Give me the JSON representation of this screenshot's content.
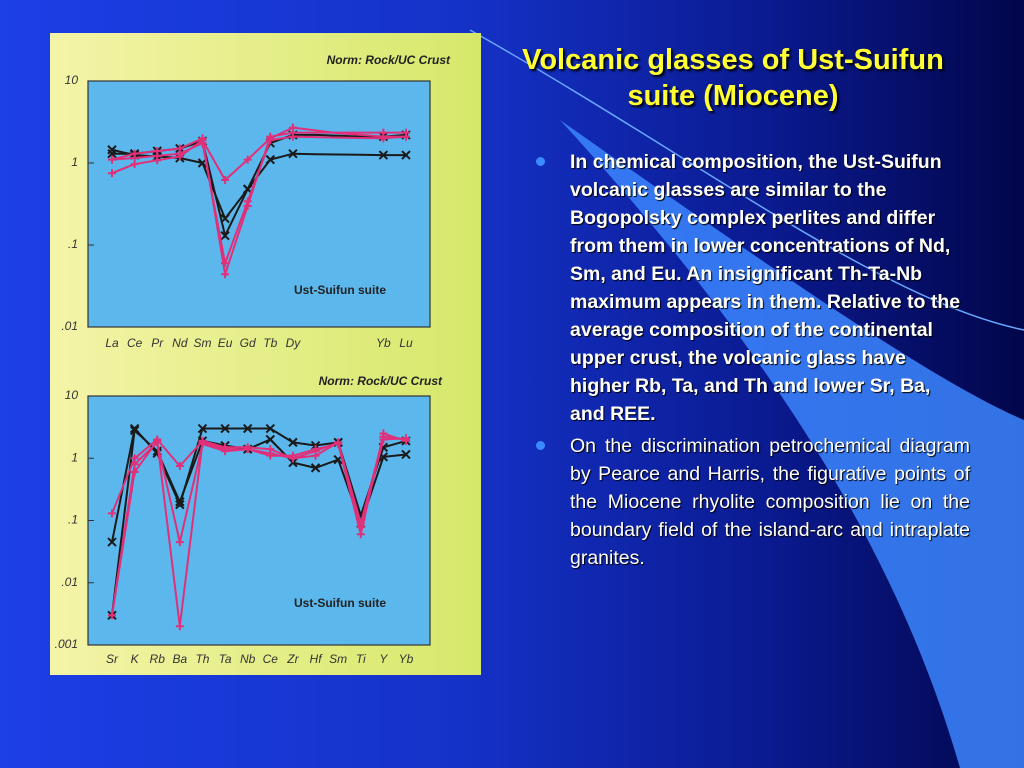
{
  "title": "Volcanic glasses of Ust-Suifun suite (Miocene)",
  "bullets": [
    "In chemical composition, the Ust-Suifun volcanic glasses are similar to the Bogopolsky complex perlites and differ from them in lower concentrations of Nd, Sm, and Eu. An insignificant Th-Ta-Nb maximum appears in them. Relative to the average composition of the continental upper crust, the volcanic glass have higher Rb, Ta, and Th and lower Sr, Ba, and REE.",
    "On the discrimination petrochemical diagram by Pearce and Harris, the figurative points of the Miocene rhyolite composition lie on the boundary field of the island-arc and intraplate granites."
  ],
  "chart_data": [
    {
      "type": "line",
      "subtitle": "Norm: Rock/UC Crust",
      "annotation": "Ust-Suifun suite",
      "log_scale": true,
      "categories": [
        "La",
        "Ce",
        "Pr",
        "Nd",
        "Sm",
        "Eu",
        "Gd",
        "Tb",
        "Dy",
        null,
        null,
        null,
        "Yb",
        "Lu"
      ],
      "ylim": [
        0.01,
        10
      ],
      "yticks": [
        10,
        1,
        {
          "value": 0.1,
          "label": ".1"
        },
        {
          "value": 0.01,
          "label": ".01"
        }
      ],
      "series": [
        {
          "color": "#1a1a1a",
          "marker": "x",
          "values": [
            1.45,
            1.25,
            1.2,
            1.15,
            1.0,
            0.21,
            0.48,
            1.1,
            1.3,
            1.28,
            1.27,
            1.26,
            1.25,
            1.25
          ]
        },
        {
          "color": "#1a1a1a",
          "marker": "x",
          "values": [
            1.3,
            1.3,
            1.4,
            1.5,
            1.85,
            0.13,
            0.48,
            1.75,
            2.2,
            2.2,
            2.15,
            2.1,
            2.1,
            2.2
          ]
        },
        {
          "color": "#e0307a",
          "marker": "+",
          "values": [
            0.75,
            0.97,
            1.08,
            1.2,
            1.9,
            0.62,
            1.1,
            2.0,
            2.7,
            2.5,
            2.3,
            2.2,
            2.1,
            2.1
          ]
        },
        {
          "color": "#e0307a",
          "marker": "+",
          "values": [
            1.1,
            1.3,
            1.4,
            1.5,
            2.0,
            0.044,
            0.3,
            2.1,
            2.35,
            2.35,
            2.35,
            2.35,
            2.35,
            2.35
          ]
        },
        {
          "color": "#e0307a",
          "marker": "+",
          "values": [
            1.1,
            1.15,
            1.22,
            1.3,
            1.75,
            0.06,
            0.34,
            1.9,
            2.1,
            2.07,
            2.04,
            2.02,
            2.0,
            2.1
          ]
        }
      ]
    },
    {
      "type": "line",
      "subtitle": "Norm: Rock/UC Crust",
      "annotation": "Ust-Suifun suite",
      "log_scale": true,
      "categories": [
        "Sr",
        "K",
        "Rb",
        "Ba",
        "Th",
        "Ta",
        "Nb",
        "Ce",
        "Zr",
        "Hf",
        "Sm",
        "Ti",
        "Y",
        "Yb"
      ],
      "ylim": [
        0.001,
        10
      ],
      "yticks": [
        10,
        1,
        {
          "value": 0.1,
          "label": ".1"
        },
        {
          "value": 0.01,
          "label": ".01"
        },
        {
          "value": 0.001,
          "label": ".001"
        }
      ],
      "series": [
        {
          "color": "#1a1a1a",
          "marker": "x",
          "values": [
            0.045,
            3.0,
            1.2,
            0.18,
            3.0,
            3.0,
            3.0,
            3.0,
            1.8,
            1.6,
            1.8,
            0.12,
            1.5,
            1.9
          ]
        },
        {
          "color": "#1a1a1a",
          "marker": "x",
          "values": [
            0.003,
            2.8,
            1.3,
            0.2,
            1.9,
            1.6,
            1.4,
            2.0,
            0.85,
            0.7,
            0.95,
            0.09,
            1.05,
            1.15
          ]
        },
        {
          "color": "#e0307a",
          "marker": "+",
          "values": [
            0.13,
            1.0,
            2.0,
            0.75,
            1.9,
            1.5,
            1.5,
            1.4,
            1.0,
            1.1,
            1.8,
            0.09,
            2.2,
            2.0
          ]
        },
        {
          "color": "#e0307a",
          "marker": "+",
          "values": [
            0.003,
            0.6,
            1.9,
            0.002,
            1.8,
            1.4,
            1.4,
            1.1,
            1.1,
            1.4,
            1.7,
            0.06,
            2.5,
            1.9
          ]
        },
        {
          "color": "#e0307a",
          "marker": "+",
          "values": [
            0.003,
            0.8,
            1.8,
            0.045,
            1.7,
            1.3,
            1.4,
            1.2,
            1.0,
            1.3,
            1.8,
            0.08,
            2.0,
            2.1
          ]
        }
      ]
    }
  ]
}
